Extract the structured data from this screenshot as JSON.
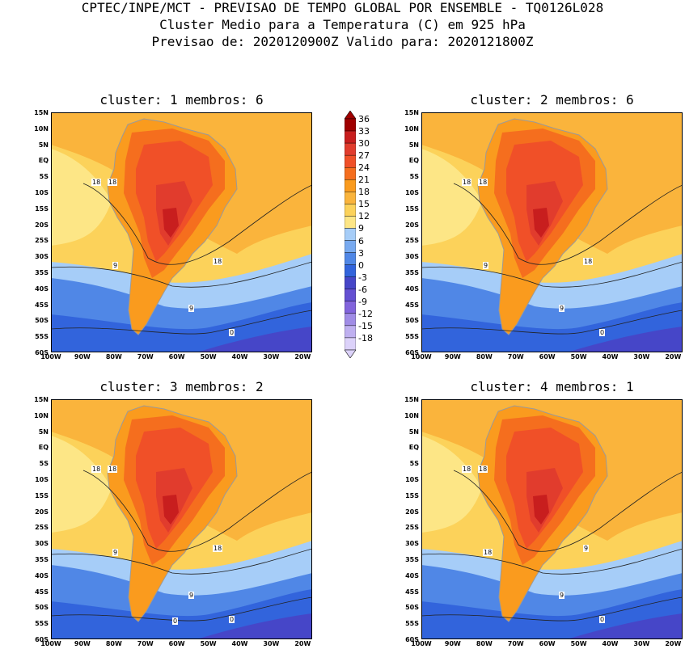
{
  "header": {
    "line1": "CPTEC/INPE/MCT - PREVISAO DE TEMPO GLOBAL POR ENSEMBLE - TQ0126L028",
    "line2": "Cluster Medio para a Temperatura (C) em 925 hPa",
    "line3": "Previsao de: 2020120900Z   Valido para: 2020121800Z"
  },
  "panels": [
    {
      "title": "cluster: 1   membros: 6",
      "contours": [
        "18",
        "18",
        "18",
        "9",
        "9",
        "0"
      ]
    },
    {
      "title": "cluster: 2   membros: 6",
      "contours": [
        "18",
        "18",
        "18",
        "9",
        "9",
        "0"
      ]
    },
    {
      "title": "cluster: 3   membros: 2",
      "contours": [
        "18",
        "18",
        "18",
        "9",
        "9",
        "0",
        "0"
      ]
    },
    {
      "title": "cluster: 4   membros: 1",
      "contours": [
        "18",
        "18",
        "9",
        "18",
        "9",
        "0"
      ]
    }
  ],
  "lat_ticks": [
    "15N",
    "10N",
    "5N",
    "EQ",
    "5S",
    "10S",
    "15S",
    "20S",
    "25S",
    "30S",
    "35S",
    "40S",
    "45S",
    "50S",
    "55S",
    "60S"
  ],
  "lon_ticks": [
    "100W",
    "90W",
    "80W",
    "70W",
    "60W",
    "50W",
    "40W",
    "30W",
    "20W"
  ],
  "legend": {
    "labels": [
      "36",
      "33",
      "30",
      "27",
      "24",
      "21",
      "18",
      "15",
      "12",
      "9",
      "6",
      "3",
      "0",
      "-3",
      "-6",
      "-9",
      "-12",
      "-15",
      "-18"
    ],
    "colors": [
      "#a00000",
      "#c81e1e",
      "#e13c2d",
      "#f05028",
      "#f56e1e",
      "#fa9b1e",
      "#fab43c",
      "#fcd25a",
      "#fde686",
      "#a6cdf8",
      "#78aaf0",
      "#5087e6",
      "#3264dc",
      "#4646c8",
      "#6450d2",
      "#8264dc",
      "#a08ce6",
      "#bfb0f0",
      "#dcd2fa"
    ]
  }
}
